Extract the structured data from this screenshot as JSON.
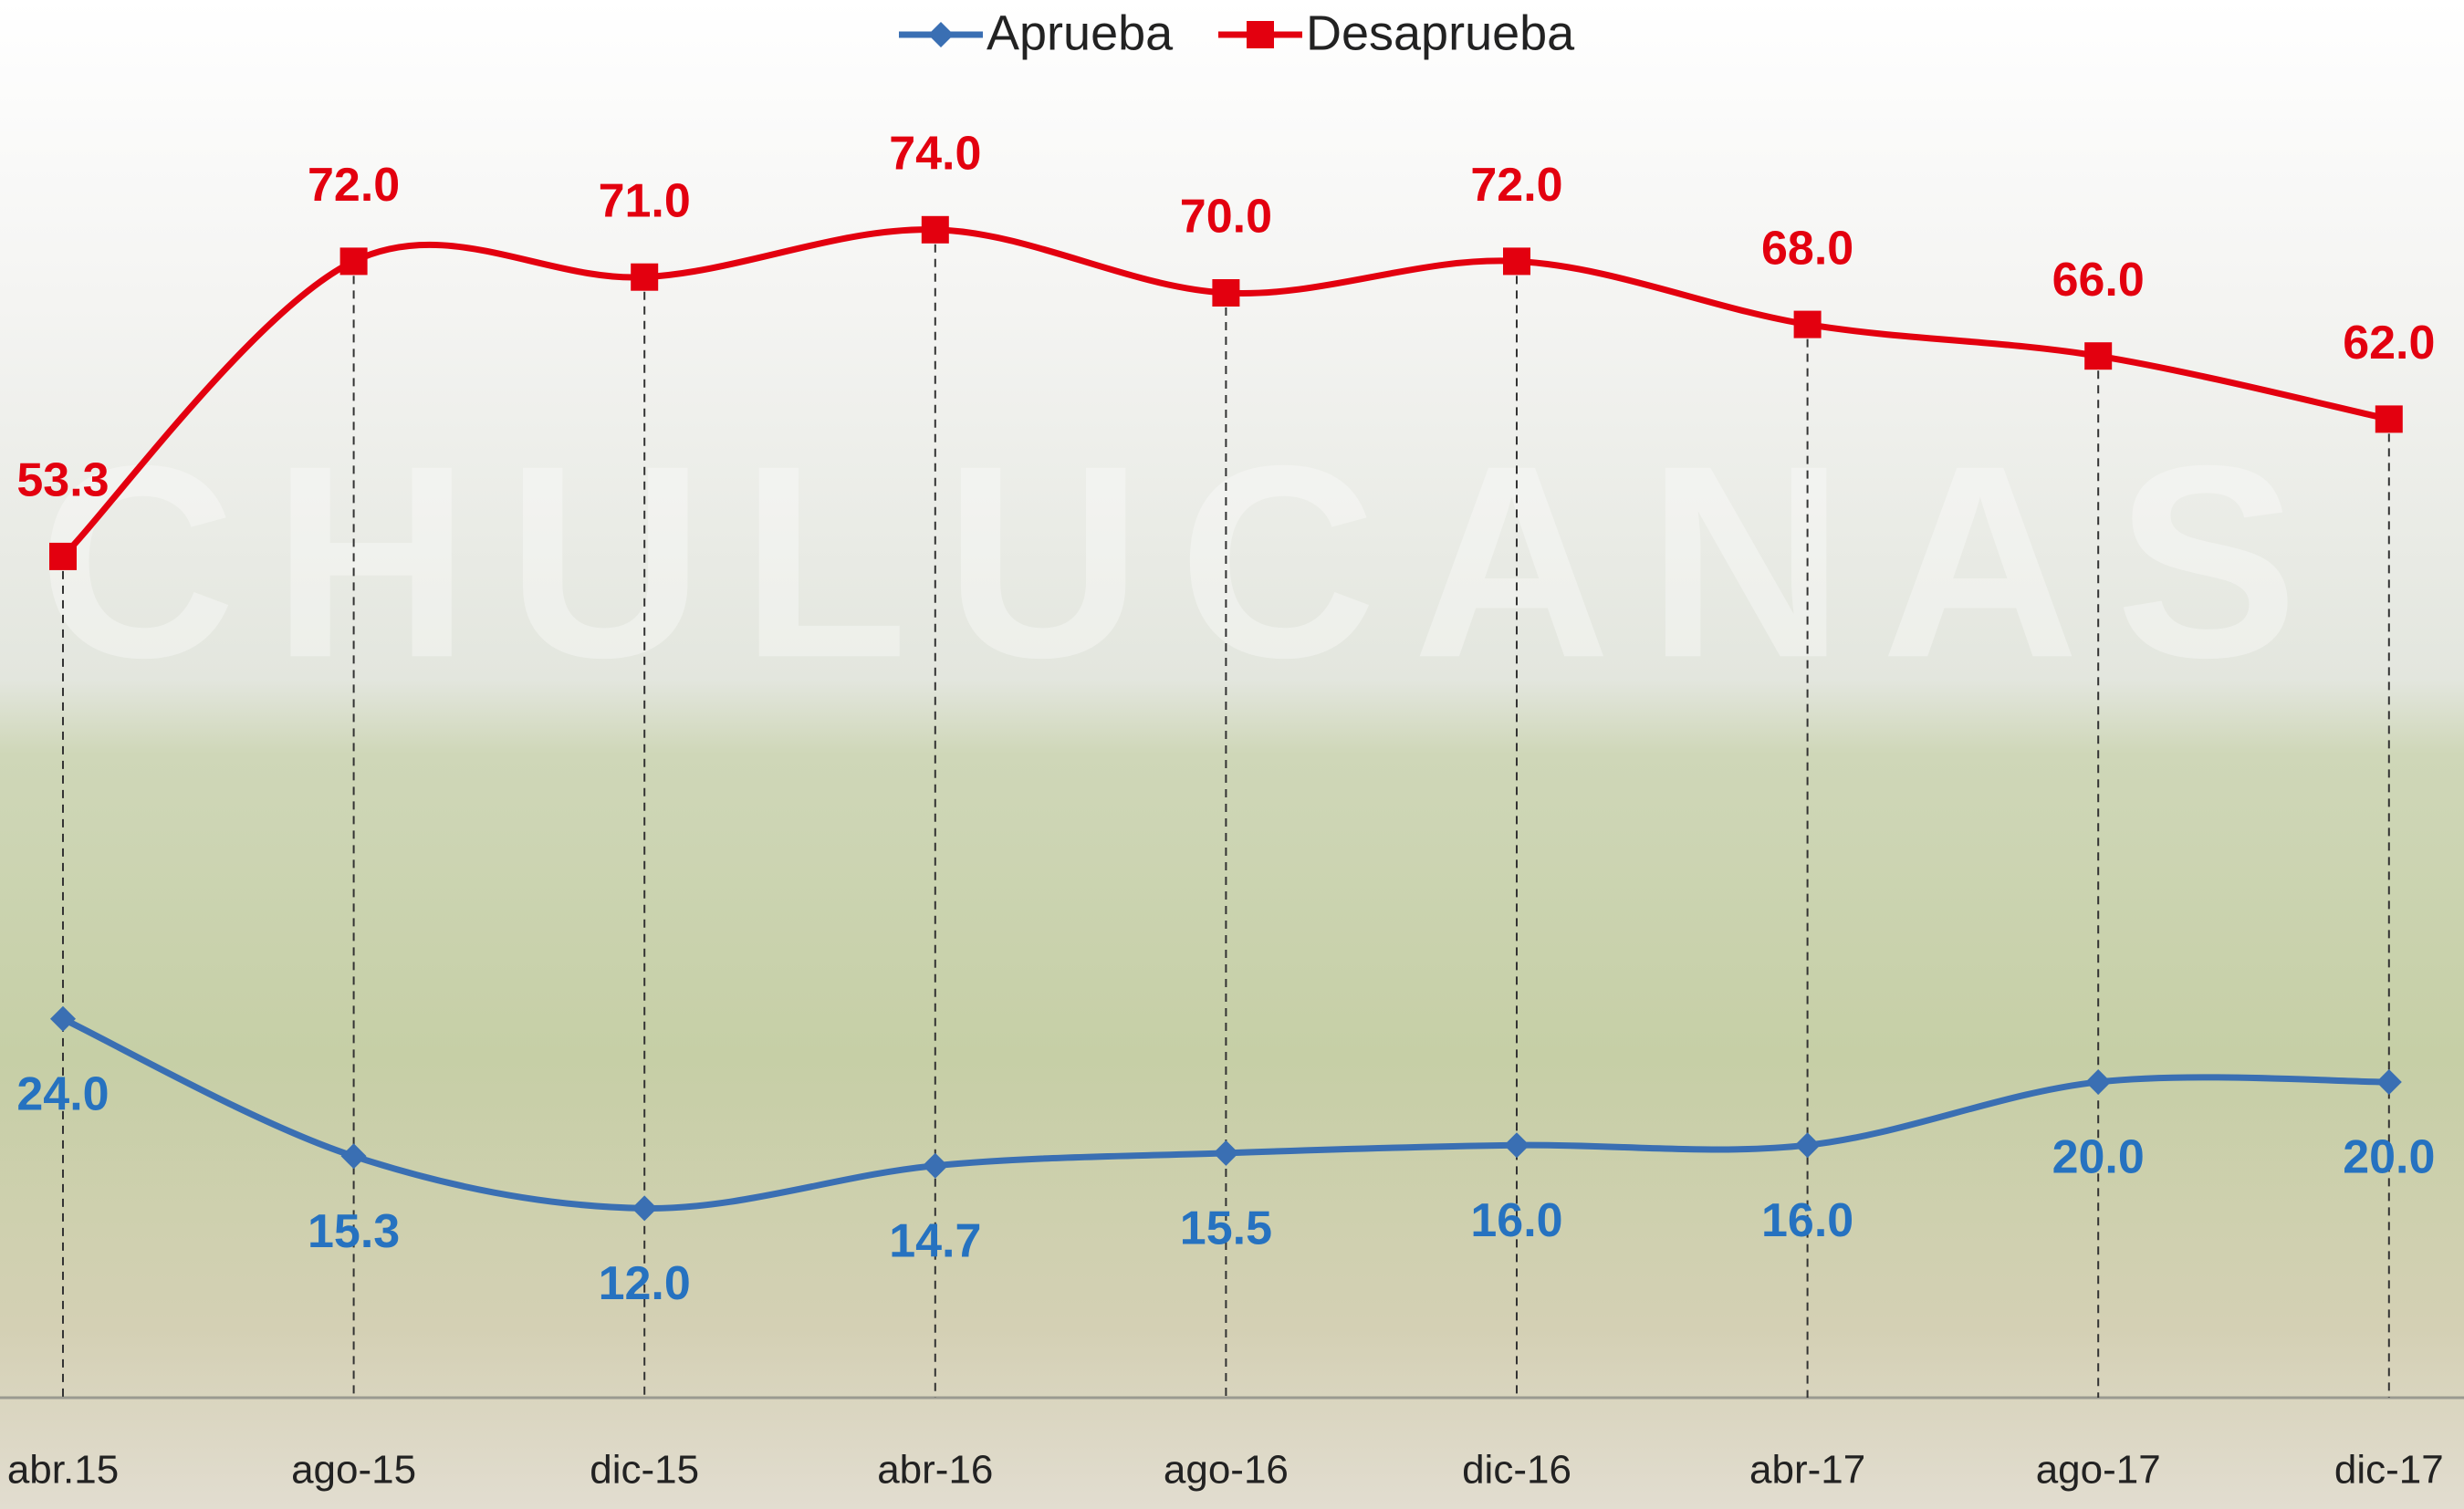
{
  "chart_data": {
    "type": "line",
    "categories": [
      "abr.15",
      "ago-15",
      "dic-15",
      "abr-16",
      "ago-16",
      "dic-16",
      "abr-17",
      "ago-17",
      "dic-17"
    ],
    "series": [
      {
        "name": "Aprueba",
        "color": "#3a6fb3",
        "label_color": "#2672c0",
        "marker": "diamond",
        "values": [
          24.0,
          15.3,
          12.0,
          14.7,
          15.5,
          16.0,
          16.0,
          20.0,
          20.0
        ],
        "value_labels": [
          "24.0",
          "15.3",
          "12.0",
          "14.7",
          "15.5",
          "16.0",
          "16.0",
          "20.0",
          "20.0"
        ]
      },
      {
        "name": "Desaprueba",
        "color": "#e3000f",
        "label_color": "#e3000f",
        "marker": "square",
        "values": [
          53.3,
          72.0,
          71.0,
          74.0,
          70.0,
          72.0,
          68.0,
          66.0,
          62.0
        ],
        "value_labels": [
          "53.3",
          "72.0",
          "71.0",
          "74.0",
          "70.0",
          "72.0",
          "68.0",
          "66.0",
          "62.0"
        ]
      }
    ],
    "legend": "top"
  }
}
